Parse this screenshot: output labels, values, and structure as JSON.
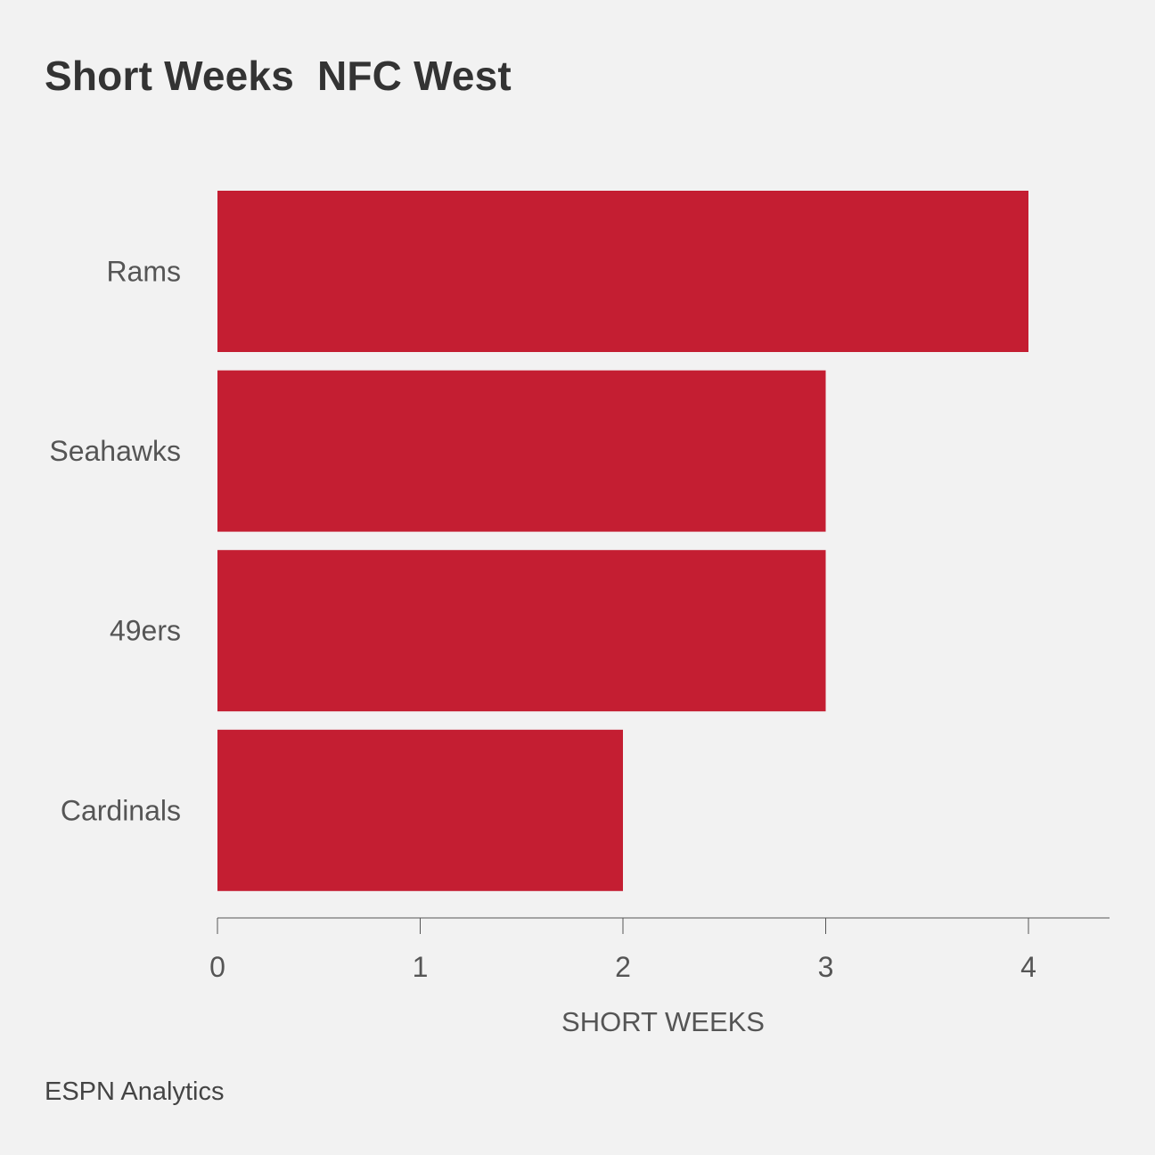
{
  "title": "Short Weeks  NFC West",
  "source": "ESPN Analytics",
  "colors": {
    "bar": "#c41e32",
    "background": "#f2f2f2",
    "axis": "#555555",
    "label": "#555555"
  },
  "chart_data": {
    "type": "bar",
    "orientation": "horizontal",
    "title": "Short Weeks  NFC West",
    "categories": [
      "Rams",
      "Seahawks",
      "49ers",
      "Cardinals"
    ],
    "values": [
      4,
      3,
      3,
      2
    ],
    "xlabel": "SHORT WEEKS",
    "ylabel": "",
    "xlim": [
      0,
      4.4
    ],
    "xticks": [
      0,
      1,
      2,
      3,
      4
    ],
    "grid": false,
    "legend": "none"
  }
}
